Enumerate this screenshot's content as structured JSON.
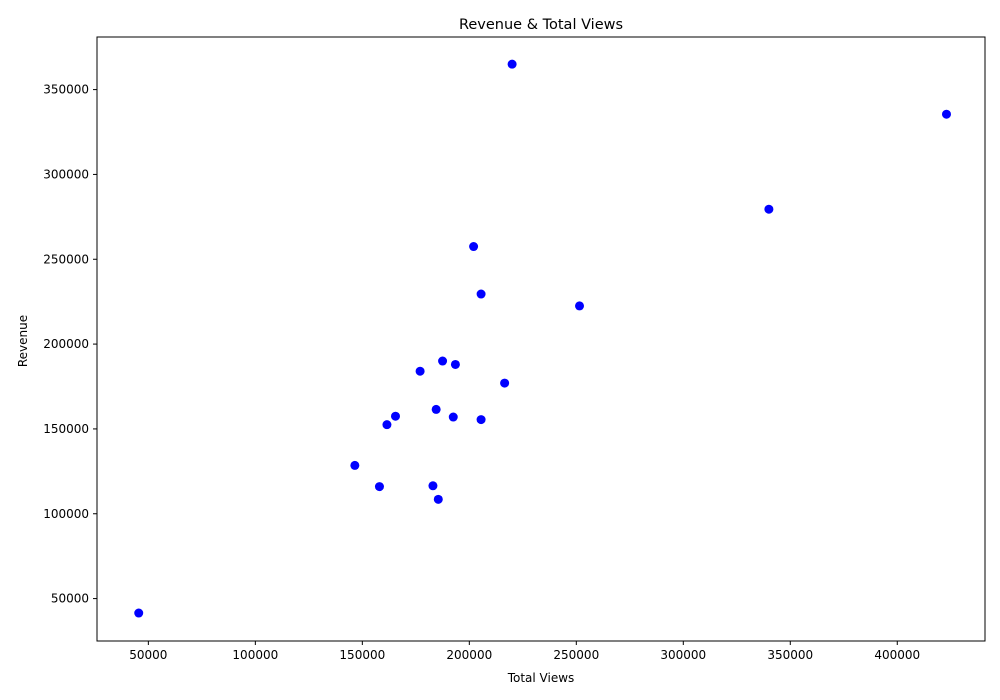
{
  "chart_data": {
    "type": "scatter",
    "title": "Revenue & Total Views",
    "xlabel": "Total Views",
    "ylabel": "Revenue",
    "xlim": [
      26000,
      441000
    ],
    "ylim": [
      25000,
      381000
    ],
    "xticks": [
      50000,
      100000,
      150000,
      200000,
      250000,
      300000,
      350000,
      400000
    ],
    "yticks": [
      50000,
      100000,
      150000,
      200000,
      250000,
      300000,
      350000
    ],
    "grid": false,
    "legend": "none",
    "point_color": "#0000ff",
    "points": [
      {
        "x": 220000,
        "y": 365000
      },
      {
        "x": 423000,
        "y": 335500
      },
      {
        "x": 340000,
        "y": 279500
      },
      {
        "x": 202000,
        "y": 257500
      },
      {
        "x": 205500,
        "y": 229500
      },
      {
        "x": 251500,
        "y": 222500
      },
      {
        "x": 187500,
        "y": 190000
      },
      {
        "x": 193500,
        "y": 188000
      },
      {
        "x": 177000,
        "y": 184000
      },
      {
        "x": 216500,
        "y": 177000
      },
      {
        "x": 184500,
        "y": 161500
      },
      {
        "x": 165500,
        "y": 157500
      },
      {
        "x": 192500,
        "y": 157000
      },
      {
        "x": 205500,
        "y": 155500
      },
      {
        "x": 161500,
        "y": 152500
      },
      {
        "x": 146500,
        "y": 128500
      },
      {
        "x": 158000,
        "y": 116000
      },
      {
        "x": 183000,
        "y": 116500
      },
      {
        "x": 185500,
        "y": 108500
      },
      {
        "x": 45500,
        "y": 41500
      }
    ]
  }
}
